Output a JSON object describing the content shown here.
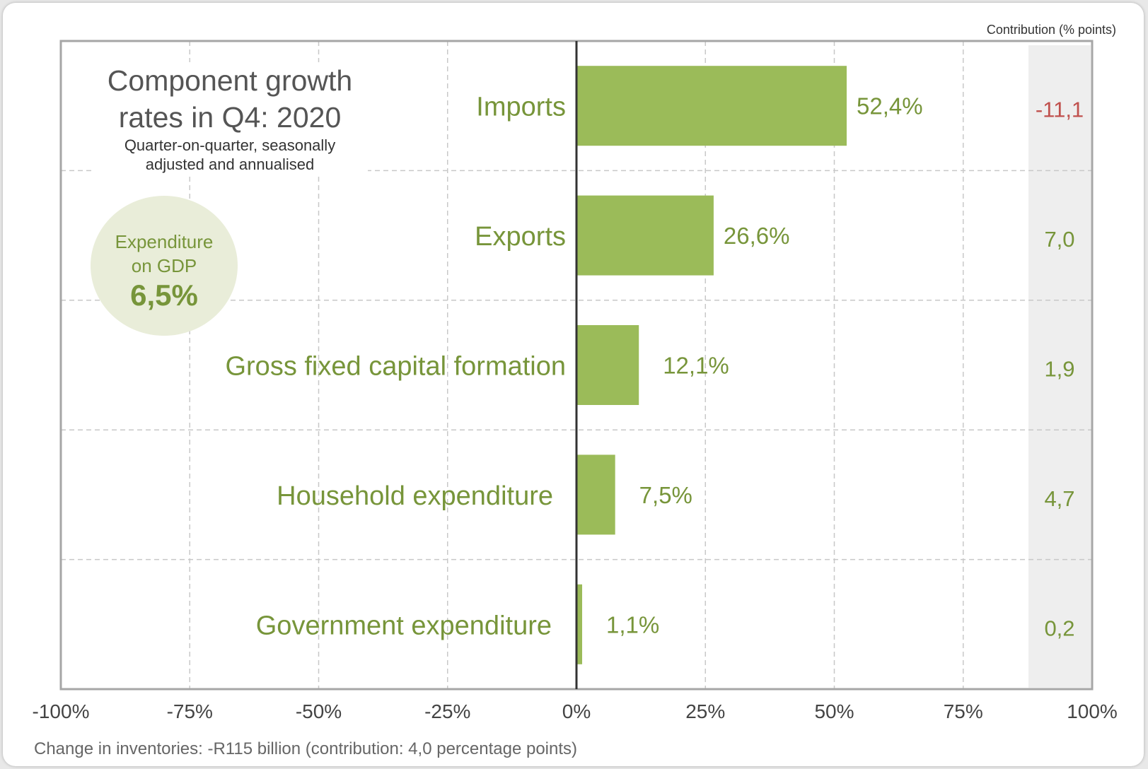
{
  "colors": {
    "bar": "#9bbb59",
    "label": "#77953a",
    "negative": "#c0504d",
    "contrib_panel": "#eeeeee",
    "grid": "#c8c8c8",
    "axis": "#333333"
  },
  "header": {
    "contribution_title": "Contribution (% points)"
  },
  "title_block": {
    "title_line1": "Component growth",
    "title_line2": "rates in Q4: 2020",
    "subtitle_line1": "Quarter-on-quarter, seasonally",
    "subtitle_line2": "adjusted and annualised"
  },
  "gdp_callout": {
    "label_line1": "Expenditure",
    "label_line2": "on GDP",
    "value": "6,5%"
  },
  "footnote": "Change in inventories: -R115 billion (contribution: 4,0 percentage points)",
  "chart_data": {
    "type": "bar",
    "orientation": "horizontal",
    "categories": [
      "Imports",
      "Exports",
      "Gross fixed capital formation",
      "Household expenditure",
      "Government expenditure"
    ],
    "values": [
      52.4,
      26.6,
      12.1,
      7.5,
      1.1
    ],
    "value_labels": [
      "52,4%",
      "26,6%",
      "12,1%",
      "7,5%",
      "1,1%"
    ],
    "contributions": [
      -11.1,
      7.0,
      1.9,
      4.7,
      0.2
    ],
    "contribution_labels": [
      "-11,1",
      "7,0",
      "1,9",
      "4,7",
      "0,2"
    ],
    "xlim": [
      -100,
      100
    ],
    "x_ticks": [
      -100,
      -75,
      -50,
      -25,
      0,
      25,
      50,
      75,
      100
    ],
    "x_tick_labels": [
      "-100%",
      "-75%",
      "-50%",
      "-25%",
      "0%",
      "25%",
      "50%",
      "75%",
      "100%"
    ],
    "grid": true
  }
}
